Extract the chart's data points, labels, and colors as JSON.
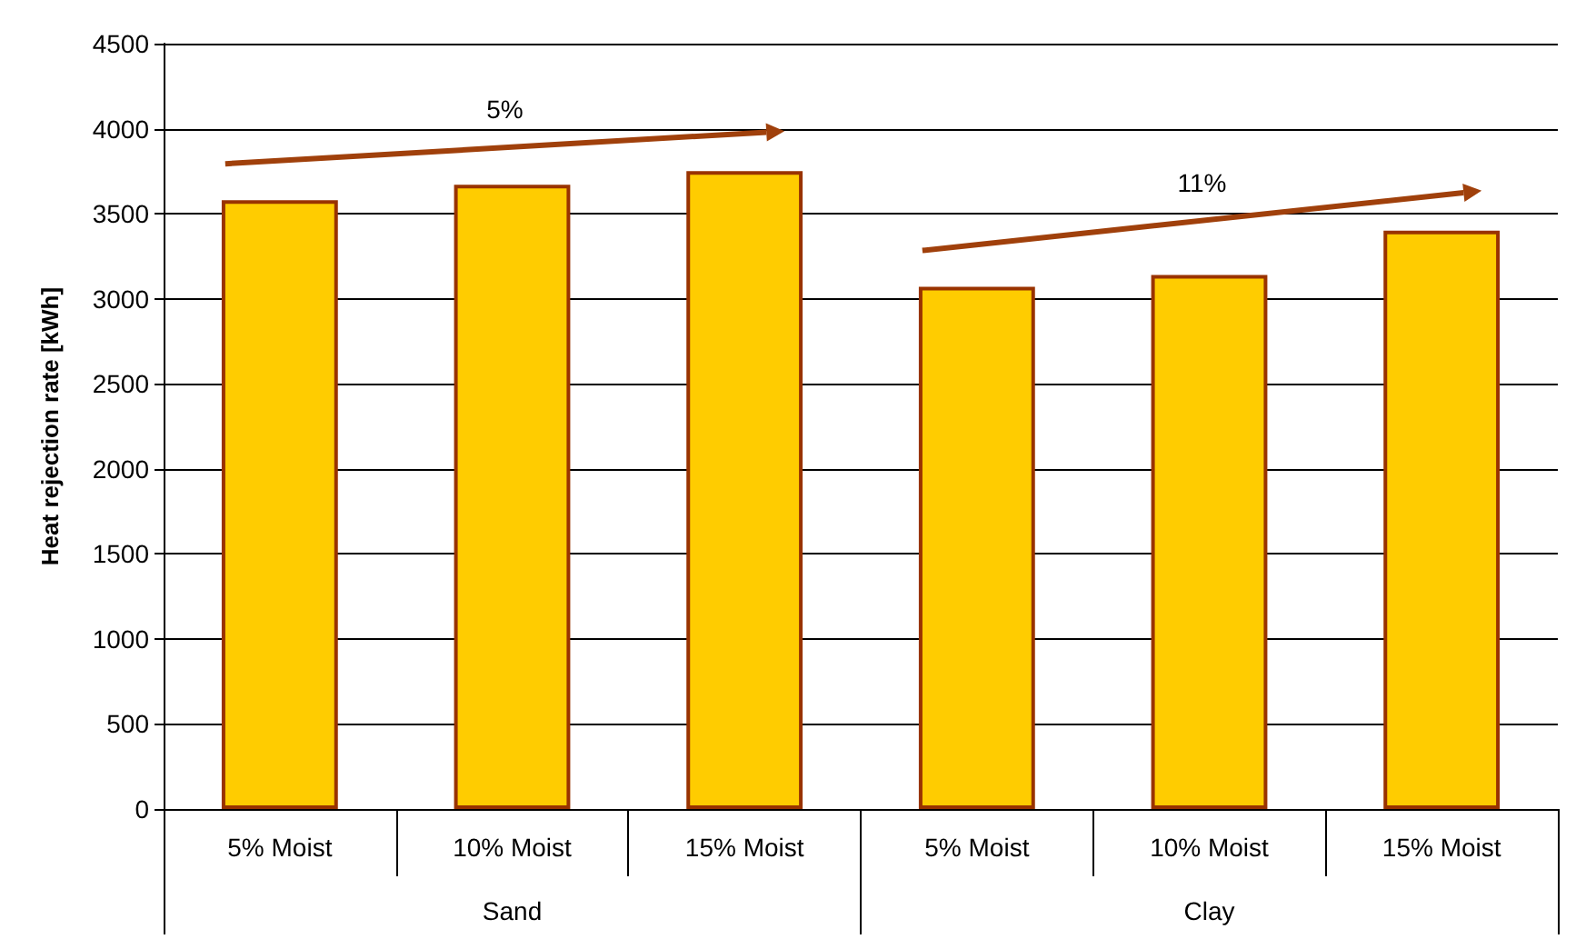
{
  "chart_data": {
    "type": "bar",
    "ylabel": "Heat rejection rate [kWh]",
    "categories": [
      "5% Moist",
      "10% Moist",
      "15% Moist",
      "5% Moist",
      "10% Moist",
      "15% Moist"
    ],
    "series": [
      {
        "color": "#ffcc00",
        "values": [
          3580,
          3670,
          3750,
          3070,
          3140,
          3400
        ]
      }
    ],
    "ylim": [
      0,
      4500
    ],
    "yticks": [
      0,
      500,
      1000,
      1500,
      2000,
      2500,
      3000,
      3500,
      4000,
      4500
    ],
    "grid": "y",
    "annotations": [
      "5%",
      "11%",
      "Sand",
      "Clay"
    ]
  }
}
